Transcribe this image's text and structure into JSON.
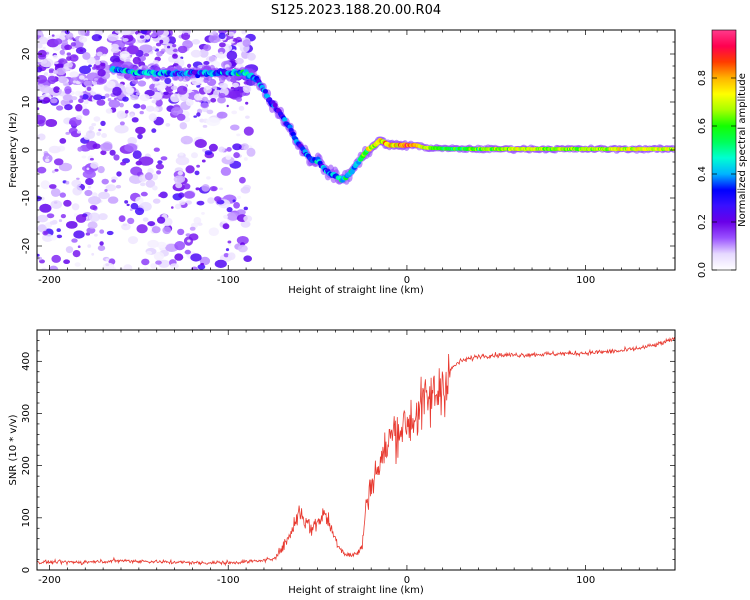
{
  "title": "S125.2023.188.20.00.R04",
  "chart_data": [
    {
      "type": "heatmap",
      "name": "spectrogram",
      "xlabel": "Height of straight line (km)",
      "ylabel": "Frequency (Hz)",
      "xlim": [
        -207,
        150
      ],
      "ylim": [
        -25,
        25
      ],
      "xticks": [
        -200,
        -100,
        0,
        100
      ],
      "yticks": [
        -20,
        -10,
        0,
        10,
        20
      ],
      "colorbar": {
        "label": "Normalized spectral amplitude",
        "range": [
          0,
          1
        ],
        "ticks": [
          0.0,
          0.2,
          0.4,
          0.6,
          0.8
        ],
        "colors": [
          "#ffffff",
          "#e6d9ff",
          "#9a52ff",
          "#6a00e8",
          "#3a10ff",
          "#0000ff",
          "#00b4ff",
          "#00ffd2",
          "#00ff5a",
          "#14ff00",
          "#a8ff00",
          "#ffff00",
          "#ffb400",
          "#ff3c00",
          "#ff0050",
          "#ff3a8c"
        ]
      },
      "ridge": {
        "x": [
          -165,
          -150,
          -140,
          -128,
          -118,
          -105,
          -95,
          -90,
          -85,
          -82,
          -78,
          -74,
          -70,
          -66,
          -62,
          -58,
          -54,
          -50,
          -46,
          -42,
          -38,
          -35,
          -30,
          -26,
          -22,
          -18,
          -15,
          -10,
          -5,
          0,
          5,
          10,
          20,
          40,
          60,
          80,
          100,
          120,
          150
        ],
        "y": [
          17,
          16,
          16,
          16,
          16,
          16,
          16,
          16,
          15,
          14,
          11,
          9,
          7,
          5,
          2,
          0,
          -2,
          -2,
          -4,
          -5,
          -6,
          -6,
          -4,
          -2,
          0,
          1,
          2,
          1,
          1,
          1,
          1,
          0.5,
          0.3,
          0.2,
          0.2,
          0.2,
          0.2,
          0.2,
          0.2
        ],
        "amplitude": [
          0.4,
          0.4,
          0.45,
          0.35,
          0.35,
          0.35,
          0.4,
          0.4,
          0.4,
          0.35,
          0.3,
          0.3,
          0.3,
          0.3,
          0.3,
          0.3,
          0.35,
          0.35,
          0.35,
          0.4,
          0.45,
          0.45,
          0.45,
          0.5,
          0.7,
          0.75,
          0.7,
          0.75,
          0.8,
          0.8,
          0.8,
          0.7,
          0.55,
          0.6,
          0.7,
          0.65,
          0.65,
          0.7,
          0.7
        ]
      },
      "noise_extent": [
        -207,
        -87
      ]
    },
    {
      "type": "line",
      "name": "snr",
      "xlabel": "Height of straight line (km)",
      "ylabel": "SNR (10 * v/v)",
      "xlim": [
        -207,
        150
      ],
      "ylim": [
        0,
        460
      ],
      "xticks": [
        -200,
        -100,
        0,
        100
      ],
      "yticks": [
        0,
        100,
        200,
        300,
        400
      ],
      "series": [
        {
          "color": "#e8392f",
          "x": [
            -207,
            -180,
            -160,
            -140,
            -120,
            -100,
            -90,
            -80,
            -75,
            -70,
            -65,
            -60,
            -57,
            -54,
            -50,
            -47,
            -44,
            -42,
            -40,
            -37,
            -34,
            -30,
            -27,
            -25,
            -23,
            -20,
            -18,
            -15,
            -12,
            -10,
            -7,
            -5,
            -2,
            0,
            3,
            6,
            10,
            14,
            18,
            22,
            26,
            30,
            35,
            40,
            50,
            60,
            70,
            80,
            90,
            100,
            110,
            120,
            130,
            140,
            150
          ],
          "y": [
            15,
            15,
            18,
            16,
            14,
            14,
            16,
            18,
            22,
            40,
            70,
            115,
            95,
            80,
            90,
            110,
            95,
            75,
            60,
            40,
            30,
            28,
            35,
            45,
            120,
            165,
            185,
            200,
            230,
            250,
            265,
            270,
            275,
            280,
            290,
            300,
            320,
            330,
            345,
            370,
            390,
            400,
            405,
            410,
            412,
            412,
            413,
            414,
            415,
            416,
            418,
            420,
            425,
            432,
            443
          ]
        }
      ]
    }
  ]
}
